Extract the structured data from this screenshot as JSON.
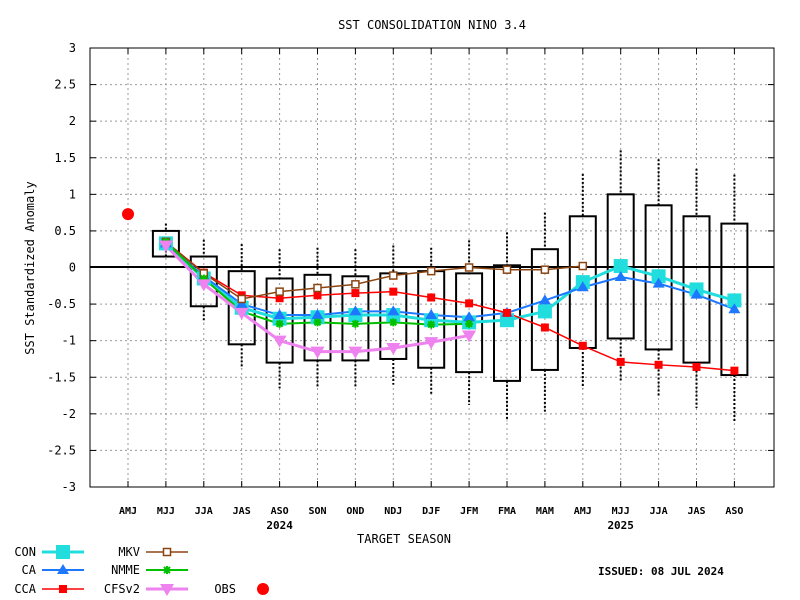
{
  "chart_data": {
    "type": "line",
    "title": "SST CONSOLIDATION NINO 3.4",
    "xlabel": "TARGET SEASON",
    "ylabel": "SST Standardized Anomaly",
    "ylim": [
      -3,
      3
    ],
    "yticks": [
      "3",
      "2.5",
      "2",
      "1.5",
      "1",
      "0.5",
      "0",
      "-0.5",
      "-1",
      "-1.5",
      "-2",
      "-2.5",
      "-3"
    ],
    "categories": [
      "AMJ",
      "MJJ",
      "JJA",
      "JAS",
      "ASO",
      "SON",
      "OND",
      "NDJ",
      "DJF",
      "JFM",
      "FMA",
      "MAM",
      "AMJ",
      "MJJ",
      "JJA",
      "JAS",
      "ASO"
    ],
    "year_labels": [
      {
        "label": "2024",
        "category_index": 4
      },
      {
        "label": "2025",
        "category_index": 13
      }
    ],
    "grid": true,
    "legend_placement": "bottom-left",
    "issued": "ISSUED: 08 JUL 2024",
    "boxes": [
      null,
      {
        "low": 0.15,
        "high": 0.5,
        "whisker_low": 0.3,
        "whisker_high": 0.6
      },
      {
        "low": -0.53,
        "high": 0.15,
        "whisker_low": -0.75,
        "whisker_high": 0.38
      },
      {
        "low": -1.05,
        "high": -0.05,
        "whisker_low": -1.38,
        "whisker_high": 0.32
      },
      {
        "low": -1.3,
        "high": -0.15,
        "whisker_low": -1.65,
        "whisker_high": 0.25
      },
      {
        "low": -1.27,
        "high": -0.1,
        "whisker_low": -1.63,
        "whisker_high": 0.27
      },
      {
        "low": -1.27,
        "high": -0.12,
        "whisker_low": -1.63,
        "whisker_high": 0.25
      },
      {
        "low": -1.25,
        "high": -0.08,
        "whisker_low": -1.6,
        "whisker_high": 0.3
      },
      {
        "low": -1.37,
        "high": -0.05,
        "whisker_low": -1.75,
        "whisker_high": 0.27
      },
      {
        "low": -1.43,
        "high": -0.08,
        "whisker_low": -1.88,
        "whisker_high": 0.37
      },
      {
        "low": -1.55,
        "high": 0.03,
        "whisker_low": -2.1,
        "whisker_high": 0.48
      },
      {
        "low": -1.4,
        "high": 0.25,
        "whisker_low": -1.97,
        "whisker_high": 0.75
      },
      {
        "low": -1.1,
        "high": 0.7,
        "whisker_low": -1.65,
        "whisker_high": 1.28
      },
      {
        "low": -0.97,
        "high": 1.0,
        "whisker_low": -1.57,
        "whisker_high": 1.6
      },
      {
        "low": -1.12,
        "high": 0.85,
        "whisker_low": -1.75,
        "whisker_high": 1.48
      },
      {
        "low": -1.3,
        "high": 0.7,
        "whisker_low": -1.92,
        "whisker_high": 1.35
      },
      {
        "low": -1.47,
        "high": 0.6,
        "whisker_low": -2.1,
        "whisker_high": 1.27
      }
    ],
    "series": [
      {
        "name": "CON",
        "color": "#22dddd",
        "marker": "bigsquare",
        "values": [
          null,
          0.33,
          -0.15,
          -0.55,
          -0.7,
          -0.68,
          -0.65,
          -0.65,
          -0.72,
          -0.75,
          -0.72,
          -0.6,
          -0.2,
          0.02,
          -0.12,
          -0.3,
          -0.45
        ]
      },
      {
        "name": "CA",
        "color": "#1e78ff",
        "marker": "triangle",
        "values": [
          null,
          0.33,
          -0.12,
          -0.5,
          -0.65,
          -0.65,
          -0.6,
          -0.6,
          -0.65,
          -0.68,
          -0.62,
          -0.45,
          -0.27,
          -0.13,
          -0.22,
          -0.37,
          -0.57
        ]
      },
      {
        "name": "CCA",
        "color": "#ff0000",
        "marker": "square",
        "values": [
          null,
          0.35,
          -0.07,
          -0.38,
          -0.42,
          -0.38,
          -0.35,
          -0.33,
          -0.41,
          -0.49,
          -0.62,
          -0.82,
          -1.07,
          -1.29,
          -1.33,
          -1.36,
          -1.41
        ]
      },
      {
        "name": "MKV",
        "color": "#8b4513",
        "marker": "opensquare",
        "values": [
          null,
          0.35,
          -0.08,
          -0.43,
          -0.33,
          -0.28,
          -0.23,
          -0.11,
          -0.05,
          0.0,
          -0.03,
          -0.03,
          0.02,
          null,
          null,
          null,
          null
        ]
      },
      {
        "name": "NMME",
        "color": "#00c000",
        "marker": "star",
        "values": [
          null,
          0.35,
          -0.15,
          -0.6,
          -0.77,
          -0.75,
          -0.77,
          -0.75,
          -0.78,
          -0.77,
          null,
          null,
          null,
          null,
          null,
          null,
          null
        ]
      },
      {
        "name": "CFSv2",
        "color": "#ee82ee",
        "marker": "invtriangle",
        "values": [
          null,
          0.3,
          -0.23,
          -0.62,
          -1.0,
          -1.15,
          -1.15,
          -1.1,
          -1.02,
          -0.93,
          null,
          null,
          null,
          null,
          null,
          null,
          null
        ]
      },
      {
        "name": "OBS",
        "color": "#ff0000",
        "marker": "circle",
        "values": [
          0.73,
          null,
          null,
          null,
          null,
          null,
          null,
          null,
          null,
          null,
          null,
          null,
          null,
          null,
          null,
          null,
          null
        ]
      }
    ]
  }
}
